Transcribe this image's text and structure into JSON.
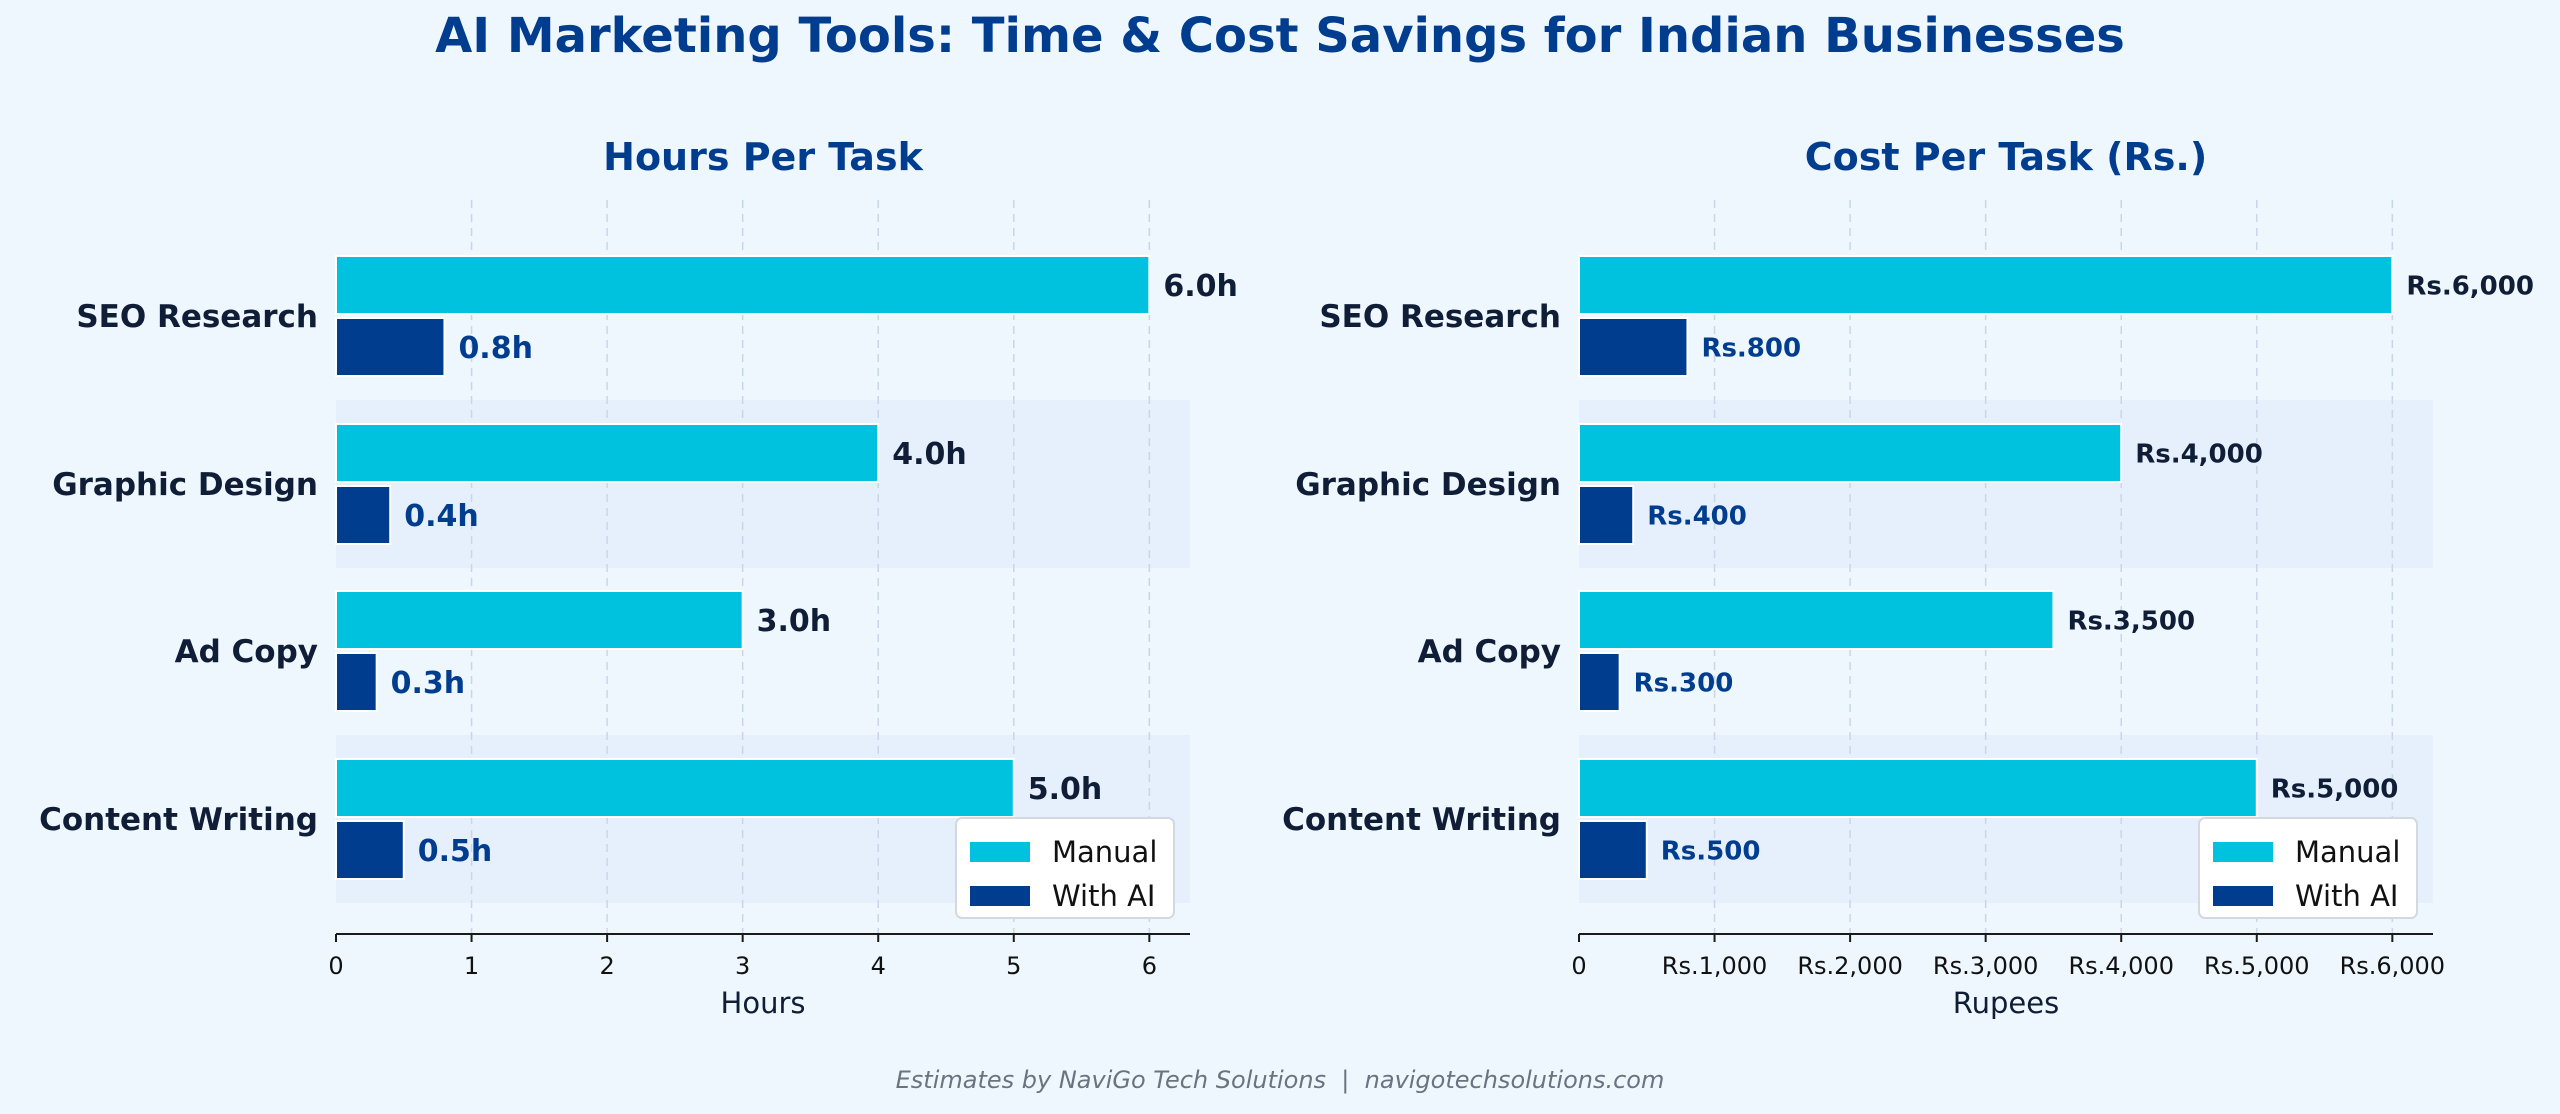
{
  "title": "AI Marketing Tools: Time & Cost Savings for Indian Businesses",
  "footer": "Estimates by NaviGo Tech Solutions  |  navigotechsolutions.com",
  "colors": {
    "background": "#eef6fe",
    "title": "#003d8f",
    "manual": "#00c2de",
    "with_ai": "#003d8f",
    "label_dark": "#0f1e36",
    "band": "#e6effc",
    "footer": "#6b7280"
  },
  "chart_data": [
    {
      "type": "bar",
      "orientation": "horizontal",
      "title": "Hours Per Task",
      "xlabel": "Hours",
      "ylabel": "",
      "categories": [
        "SEO Research",
        "Graphic Design",
        "Ad Copy",
        "Content Writing"
      ],
      "series": [
        {
          "name": "Manual",
          "values": [
            6.0,
            4.0,
            3.0,
            5.0
          ],
          "labels": [
            "6.0h",
            "4.0h",
            "3.0h",
            "5.0h"
          ]
        },
        {
          "name": "With AI",
          "values": [
            0.8,
            0.4,
            0.3,
            0.5
          ],
          "labels": [
            "0.8h",
            "0.4h",
            "0.3h",
            "0.5h"
          ]
        }
      ],
      "xlim": [
        0,
        6.3
      ],
      "ticks": [
        0,
        1,
        2,
        3,
        4,
        5,
        6
      ],
      "tick_labels": [
        "0",
        "1",
        "2",
        "3",
        "4",
        "5",
        "6"
      ],
      "grid": "vertical dashed",
      "legend": "bottom-right"
    },
    {
      "type": "bar",
      "orientation": "horizontal",
      "title": "Cost Per Task (Rs.)",
      "xlabel": "Rupees",
      "ylabel": "",
      "categories": [
        "SEO Research",
        "Graphic Design",
        "Ad Copy",
        "Content Writing"
      ],
      "series": [
        {
          "name": "Manual",
          "values": [
            6000,
            4000,
            3500,
            5000
          ],
          "labels": [
            "Rs.6,000",
            "Rs.4,000",
            "Rs.3,500",
            "Rs.5,000"
          ]
        },
        {
          "name": "With AI",
          "values": [
            800,
            400,
            300,
            500
          ],
          "labels": [
            "Rs.800",
            "Rs.400",
            "Rs.300",
            "Rs.500"
          ]
        }
      ],
      "xlim": [
        0,
        6300
      ],
      "ticks": [
        0,
        1000,
        2000,
        3000,
        4000,
        5000,
        6000
      ],
      "tick_labels": [
        "0",
        "Rs.1,000",
        "Rs.2,000",
        "Rs.3,000",
        "Rs.4,000",
        "Rs.5,000",
        "Rs.6,000"
      ],
      "grid": "vertical dashed",
      "legend": "bottom-right"
    }
  ]
}
